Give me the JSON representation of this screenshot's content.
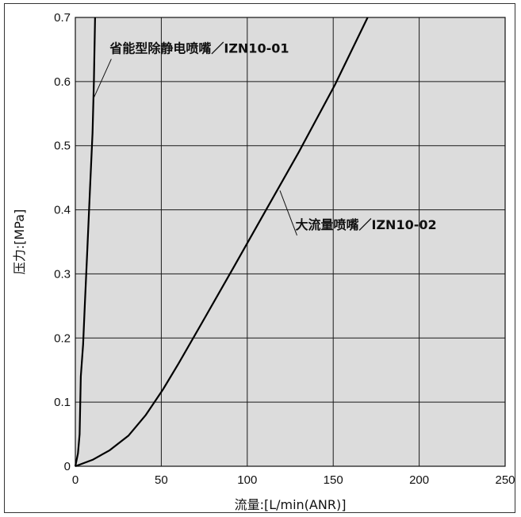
{
  "chart_data": {
    "type": "line",
    "xlabel": "流量:[L/min(ANR)]",
    "ylabel": "压力:[MPa]",
    "xlim": [
      0,
      250
    ],
    "ylim": [
      0,
      0.7
    ],
    "xticks": [
      "0",
      "50",
      "100",
      "150",
      "200",
      "250"
    ],
    "yticks": [
      "0",
      "0.1",
      "0.2",
      "0.3",
      "0.4",
      "0.5",
      "0.6",
      "0.7"
    ],
    "grid": true,
    "colors": {
      "plot_background": "#dcdcdc",
      "grid": "#1a1a1a",
      "line": "#000000"
    },
    "series": [
      {
        "name": "省能型除静电喷嘴／IZN10-01",
        "x": [
          0,
          1.5,
          2.5,
          3.2,
          4.5,
          5.5,
          7.0,
          8.5,
          10.0,
          10.8,
          11.5
        ],
        "y": [
          0,
          0.02,
          0.05,
          0.14,
          0.19,
          0.25,
          0.34,
          0.43,
          0.52,
          0.6,
          0.7
        ]
      },
      {
        "name": "大流量喷嘴／IZN10-02",
        "x": [
          0,
          10,
          20,
          31,
          41,
          51,
          60,
          75,
          92,
          111,
          130,
          151,
          170
        ],
        "y": [
          0,
          0.01,
          0.025,
          0.048,
          0.08,
          0.12,
          0.16,
          0.23,
          0.31,
          0.4,
          0.49,
          0.595,
          0.7
        ]
      }
    ],
    "annotations": [
      {
        "text": "省能型除静电喷嘴／IZN10-01",
        "series": 0,
        "anchor": [
          10.8,
          0.575
        ],
        "text_at": [
          20,
          0.645
        ]
      },
      {
        "text": "大流量喷嘴／IZN10-02",
        "series": 1,
        "anchor": [
          119,
          0.43
        ],
        "text_at": [
          128,
          0.37
        ]
      }
    ]
  }
}
